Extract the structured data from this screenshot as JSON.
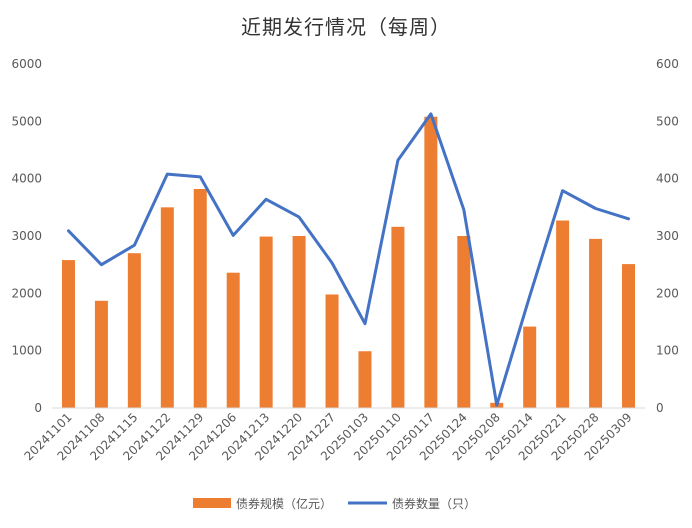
{
  "chart_data": {
    "type": "bar",
    "title": "近期发行情况（每周）",
    "categories": [
      "20241101",
      "20241108",
      "20241115",
      "20241122",
      "20241129",
      "20241206",
      "20241213",
      "20241220",
      "20241227",
      "20250103",
      "20250110",
      "20250117",
      "20250124",
      "20250208",
      "20250214",
      "20250221",
      "20250228",
      "20250309"
    ],
    "series": [
      {
        "name": "债券规模（亿元）",
        "type": "bar",
        "axis": "left",
        "color": "#ED7D31",
        "values": [
          2580,
          1870,
          2700,
          3500,
          3820,
          2360,
          2990,
          3000,
          1980,
          990,
          3160,
          5080,
          3000,
          90,
          1420,
          3270,
          2950,
          2510
        ]
      },
      {
        "name": "债券数量（只）",
        "type": "line",
        "axis": "right",
        "color": "#4472C4",
        "values": [
          309,
          250,
          284,
          408,
          403,
          301,
          364,
          333,
          253,
          147,
          432,
          513,
          346,
          5,
          195,
          379,
          348,
          330
        ]
      }
    ],
    "y_left": {
      "min": 0,
      "max": 6000,
      "ticks": [
        0,
        1000,
        2000,
        3000,
        4000,
        5000,
        6000
      ]
    },
    "y_right": {
      "min": 0,
      "max": 600,
      "ticks": [
        0,
        100,
        200,
        300,
        400,
        500,
        600
      ]
    },
    "grid": false,
    "legend_position": "bottom"
  }
}
